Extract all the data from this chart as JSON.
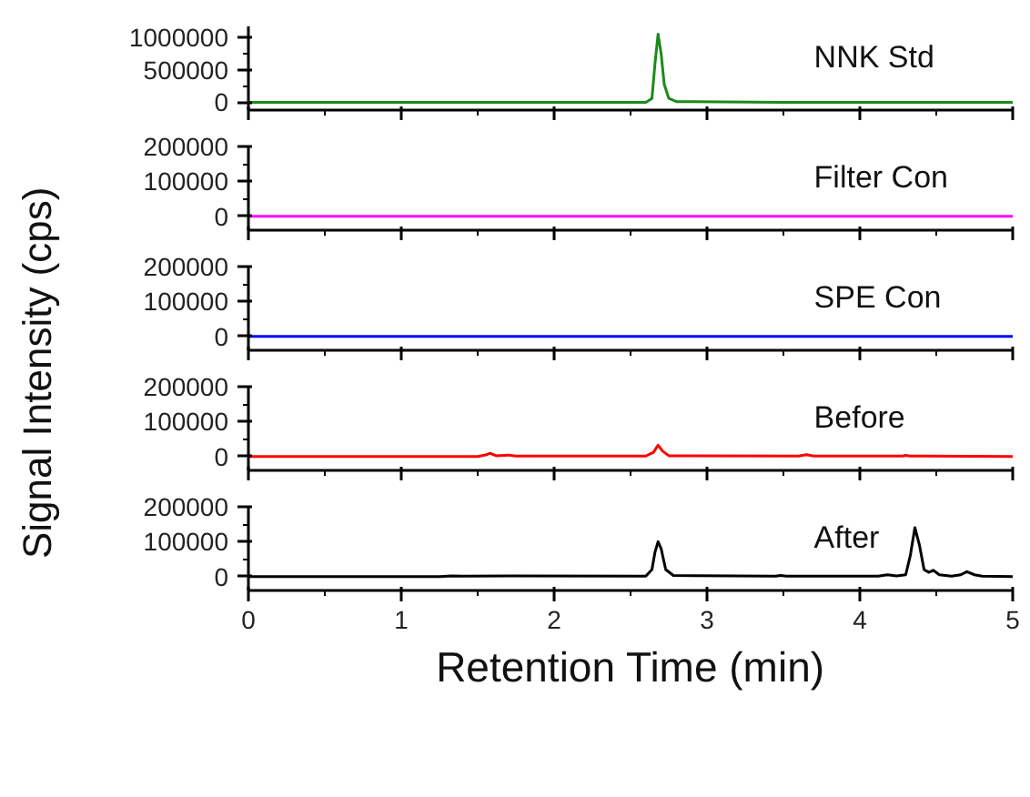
{
  "chart_data": [
    {
      "type": "line",
      "x": [
        0,
        1,
        2,
        2.6,
        2.64,
        2.66,
        2.68,
        2.7,
        2.72,
        2.75,
        2.8,
        3.5,
        4.2,
        5
      ],
      "series": [
        {
          "name": "NNK Std",
          "color": "#1a8a1a",
          "values": [
            0,
            0,
            0,
            0,
            60000,
            600000,
            1050000,
            750000,
            280000,
            60000,
            10000,
            0,
            0,
            0
          ]
        }
      ],
      "xlim": [
        0,
        5
      ],
      "xticks": [
        0,
        {
          "value": 0.5,
          "label": null
        },
        1,
        {
          "value": 1.5,
          "label": null
        },
        2,
        {
          "value": 2.5,
          "label": null
        },
        3,
        {
          "value": 3.5,
          "label": null
        },
        4,
        {
          "value": 4.5,
          "label": null
        },
        5
      ],
      "ylim": [
        -120000,
        1170000
      ],
      "yticks": [
        0,
        {
          "value": 250000,
          "label": null
        },
        500000,
        {
          "value": 750000,
          "label": null
        },
        1000000
      ],
      "tick_labels": "y"
    },
    {
      "type": "line",
      "x": [
        0,
        5
      ],
      "series": [
        {
          "name": "Filter Con",
          "color": "#ff00ff",
          "values": [
            0,
            0
          ]
        }
      ],
      "xlim": [
        0,
        5
      ],
      "xticks": [
        0,
        {
          "value": 0.5,
          "label": null
        },
        1,
        {
          "value": 1.5,
          "label": null
        },
        2,
        {
          "value": 2.5,
          "label": null
        },
        3,
        {
          "value": 3.5,
          "label": null
        },
        4,
        {
          "value": 4.5,
          "label": null
        },
        5
      ],
      "ylim": [
        -40000,
        200000
      ],
      "yticks": [
        0,
        {
          "value": 50000,
          "label": null
        },
        100000,
        {
          "value": 150000,
          "label": null
        },
        200000
      ],
      "tick_labels": "y"
    },
    {
      "type": "line",
      "x": [
        0,
        5
      ],
      "series": [
        {
          "name": "SPE Con",
          "color": "#0000ff",
          "values": [
            0,
            0
          ]
        }
      ],
      "xlim": [
        0,
        5
      ],
      "xticks": [
        0,
        {
          "value": 0.5,
          "label": null
        },
        1,
        {
          "value": 1.5,
          "label": null
        },
        2,
        {
          "value": 2.5,
          "label": null
        },
        3,
        {
          "value": 3.5,
          "label": null
        },
        4,
        {
          "value": 4.5,
          "label": null
        },
        5
      ],
      "ylim": [
        -40000,
        200000
      ],
      "yticks": [
        0,
        {
          "value": 50000,
          "label": null
        },
        100000,
        {
          "value": 150000,
          "label": null
        },
        200000
      ],
      "tick_labels": "y",
      "ylabel": "Signal Intensity (cps)"
    },
    {
      "type": "line",
      "x": [
        0,
        1.5,
        1.56,
        1.58,
        1.62,
        1.7,
        1.75,
        2.6,
        2.65,
        2.68,
        2.71,
        2.75,
        3.6,
        3.65,
        3.7,
        4.28,
        4.3,
        4.33,
        5
      ],
      "series": [
        {
          "name": "Before",
          "color": "#ff0000",
          "values": [
            0,
            0,
            5000,
            9000,
            2000,
            4000,
            1000,
            1000,
            12000,
            32000,
            15000,
            2000,
            1000,
            5000,
            1000,
            1000,
            3000,
            1000,
            0
          ]
        }
      ],
      "xlim": [
        0,
        5
      ],
      "xticks": [
        0,
        {
          "value": 0.5,
          "label": null
        },
        1,
        {
          "value": 1.5,
          "label": null
        },
        2,
        {
          "value": 2.5,
          "label": null
        },
        3,
        {
          "value": 3.5,
          "label": null
        },
        4,
        {
          "value": 4.5,
          "label": null
        },
        5
      ],
      "ylim": [
        -40000,
        200000
      ],
      "yticks": [
        0,
        {
          "value": 50000,
          "label": null
        },
        100000,
        {
          "value": 150000,
          "label": null
        },
        200000
      ],
      "tick_labels": "y"
    },
    {
      "type": "line",
      "x": [
        0,
        1.25,
        1.33,
        1.4,
        1.72,
        2.6,
        2.64,
        2.66,
        2.68,
        2.7,
        2.73,
        2.78,
        3.45,
        3.48,
        3.52,
        4.12,
        4.18,
        4.24,
        4.3,
        4.33,
        4.36,
        4.39,
        4.42,
        4.45,
        4.48,
        4.52,
        4.6,
        4.66,
        4.7,
        4.75,
        4.8,
        5
      ],
      "series": [
        {
          "name": "After",
          "color": "#000000",
          "values": [
            0,
            0,
            2000,
            1000,
            2000,
            1000,
            20000,
            70000,
            100000,
            80000,
            20000,
            3000,
            1000,
            3000,
            1000,
            1000,
            5000,
            2000,
            5000,
            60000,
            140000,
            90000,
            20000,
            12000,
            18000,
            5000,
            1000,
            5000,
            14000,
            5000,
            1000,
            0
          ]
        }
      ],
      "xlim": [
        0,
        5
      ],
      "xticks": [
        0,
        {
          "value": 0.5,
          "label": null
        },
        1,
        {
          "value": 1.5,
          "label": null
        },
        2,
        {
          "value": 2.5,
          "label": null
        },
        3,
        {
          "value": 3.5,
          "label": null
        },
        4,
        {
          "value": 4.5,
          "label": null
        },
        5
      ],
      "ylim": [
        -40000,
        200000
      ],
      "yticks": [
        0,
        {
          "value": 50000,
          "label": null
        },
        100000,
        {
          "value": 150000,
          "label": null
        },
        200000
      ],
      "xlabel": "Retention Time (min)"
    }
  ]
}
